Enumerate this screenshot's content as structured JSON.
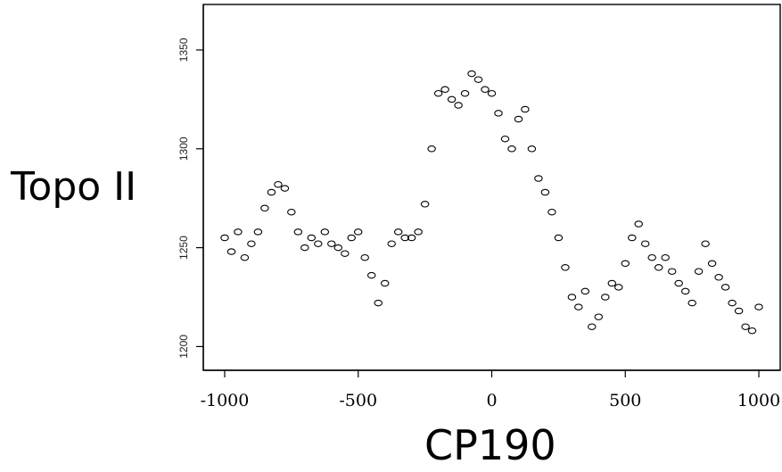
{
  "chart_data": {
    "type": "scatter",
    "title": "",
    "xlabel": "CP190",
    "ylabel": "Topo II",
    "xlim": [
      -1080,
      1080
    ],
    "ylim": [
      1188,
      1373
    ],
    "xticks": [
      -1000,
      -500,
      0,
      500,
      1000
    ],
    "xtick_labels": [
      "-1000",
      "-500",
      "0",
      "500",
      "1000"
    ],
    "yticks": [
      1200,
      1250,
      1300,
      1350
    ],
    "ytick_labels": [
      "1200",
      "1250",
      "1300",
      "1350"
    ],
    "grid": false,
    "legend": "none",
    "marker": "open-circle",
    "marker_color": "#000000",
    "series": [
      {
        "x": [
          -1000,
          -975,
          -950,
          -925,
          -900,
          -875,
          -850,
          -825,
          -800,
          -775,
          -750,
          -725,
          -700,
          -675,
          -650,
          -625,
          -600,
          -575,
          -550,
          -525,
          -500,
          -475,
          -450,
          -425,
          -400,
          -375,
          -350,
          -325,
          -300,
          -275,
          -250,
          -225,
          -200,
          -175,
          -150,
          -125,
          -100,
          -75,
          -50,
          -25,
          0,
          25,
          50,
          75,
          100,
          125,
          150,
          175,
          200,
          225,
          250,
          275,
          300,
          325,
          350,
          375,
          400,
          425,
          450,
          475,
          500,
          525,
          550,
          575,
          600,
          625,
          650,
          675,
          700,
          725,
          750,
          775,
          800,
          825,
          850,
          875,
          900,
          925,
          950,
          975,
          1000
        ],
        "y": [
          1255,
          1248,
          1258,
          1245,
          1252,
          1258,
          1270,
          1278,
          1282,
          1280,
          1268,
          1258,
          1250,
          1255,
          1252,
          1258,
          1252,
          1250,
          1247,
          1255,
          1258,
          1245,
          1236,
          1222,
          1232,
          1252,
          1258,
          1255,
          1255,
          1258,
          1272,
          1300,
          1328,
          1330,
          1325,
          1322,
          1328,
          1338,
          1335,
          1330,
          1328,
          1318,
          1305,
          1300,
          1315,
          1320,
          1300,
          1285,
          1278,
          1268,
          1255,
          1240,
          1225,
          1220,
          1228,
          1210,
          1215,
          1225,
          1232,
          1230,
          1242,
          1255,
          1262,
          1252,
          1245,
          1240,
          1245,
          1238,
          1232,
          1228,
          1222,
          1238,
          1252,
          1242,
          1235,
          1230,
          1222,
          1218,
          1210,
          1208,
          1220
        ]
      }
    ]
  }
}
